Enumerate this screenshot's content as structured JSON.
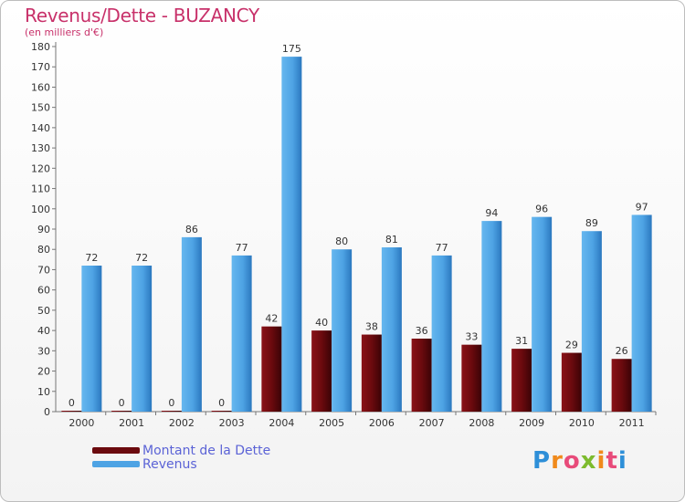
{
  "chart_data": {
    "type": "bar",
    "title": "Revenus/Dette - BUZANCY",
    "subtitle": "(en milliers d'€)",
    "categories": [
      "2000",
      "2001",
      "2002",
      "2003",
      "2004",
      "2005",
      "2006",
      "2007",
      "2008",
      "2009",
      "2010",
      "2011"
    ],
    "series": [
      {
        "name": "Montant de la Dette",
        "color": "#6b0a0e",
        "values": [
          0,
          0,
          0,
          0,
          42,
          40,
          38,
          36,
          33,
          31,
          29,
          26
        ]
      },
      {
        "name": "Revenus",
        "color": "#4ea3e4",
        "values": [
          72,
          72,
          86,
          77,
          175,
          80,
          81,
          77,
          94,
          96,
          89,
          97
        ]
      }
    ],
    "ylim": [
      0,
      180
    ],
    "yticks": [
      0,
      10,
      20,
      30,
      40,
      50,
      60,
      70,
      80,
      90,
      100,
      110,
      120,
      130,
      140,
      150,
      160,
      170,
      180
    ],
    "grid": false,
    "legend_position": "bottom-left"
  },
  "brand": {
    "logo_text": "Proxiti",
    "logo_colors": [
      "#2e8fd8",
      "#f08a1c",
      "#e84b7a",
      "#7dbb2e",
      "#f08a1c",
      "#e84b7a",
      "#2e8fd8"
    ]
  }
}
